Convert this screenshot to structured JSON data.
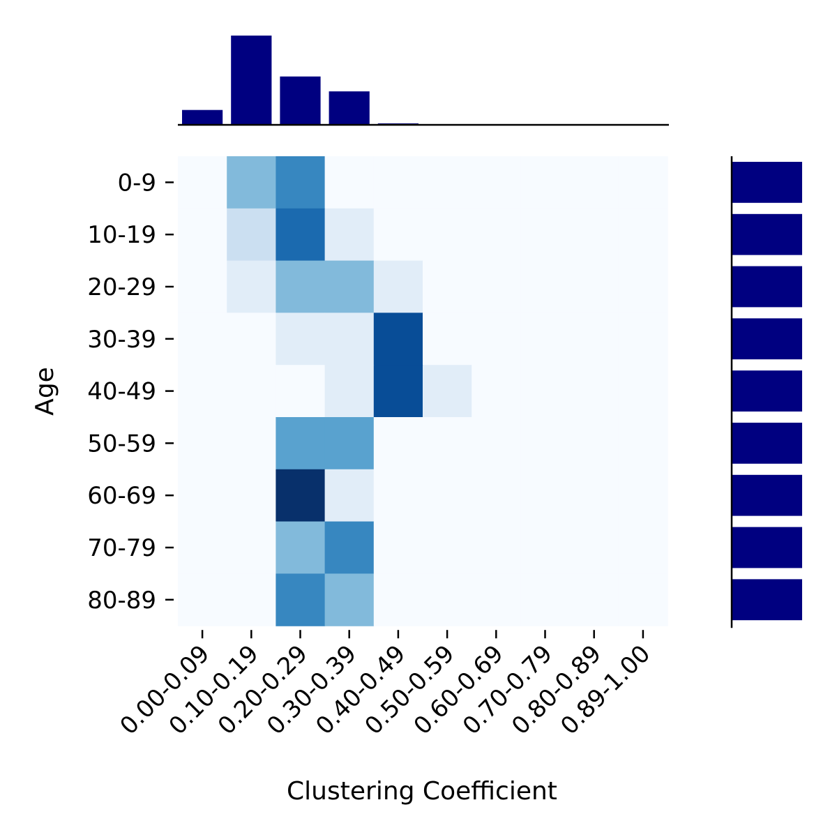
{
  "chart_data": {
    "type": "heatmap",
    "xlabel": "Clustering Coefficient",
    "ylabel": "Age",
    "x_categories": [
      "0.00-0.09",
      "0.10-0.19",
      "0.20-0.29",
      "0.30-0.39",
      "0.40-0.49",
      "0.50-0.59",
      "0.60-0.69",
      "0.70-0.79",
      "0.80-0.89",
      "0.89-1.00"
    ],
    "y_categories": [
      "0-9",
      "10-19",
      "20-29",
      "30-39",
      "40-49",
      "50-59",
      "60-69",
      "70-79",
      "80-89"
    ],
    "values": [
      [
        0,
        0.4,
        0.6,
        0,
        0,
        0,
        0,
        0,
        0,
        0
      ],
      [
        0,
        0.2,
        0.7,
        0.1,
        0,
        0,
        0,
        0,
        0,
        0
      ],
      [
        0,
        0.1,
        0.4,
        0.4,
        0.1,
        0,
        0,
        0,
        0,
        0
      ],
      [
        0,
        0,
        0.1,
        0.1,
        0.8,
        0,
        0,
        0,
        0,
        0
      ],
      [
        0,
        0,
        0,
        0.1,
        0.8,
        0.1,
        0,
        0,
        0,
        0
      ],
      [
        0,
        0,
        0.5,
        0.5,
        0,
        0,
        0,
        0,
        0,
        0
      ],
      [
        0,
        0,
        0.9,
        0.1,
        0,
        0,
        0,
        0,
        0,
        0
      ],
      [
        0,
        0,
        0.4,
        0.6,
        0,
        0,
        0,
        0,
        0,
        0
      ],
      [
        0,
        0,
        0.6,
        0.4,
        0,
        0,
        0,
        0,
        0,
        0
      ]
    ],
    "colormap": "Blues",
    "top_marginal": {
      "type": "bar",
      "values": [
        0.2,
        1.2,
        0.65,
        0.45,
        0.02,
        0,
        0,
        0,
        0,
        0
      ]
    },
    "right_marginal": {
      "type": "barh",
      "values": [
        1,
        1,
        1,
        1,
        1,
        1,
        1,
        1,
        1
      ]
    },
    "marginal_color": "#000080",
    "grid": false,
    "legend": "none"
  }
}
